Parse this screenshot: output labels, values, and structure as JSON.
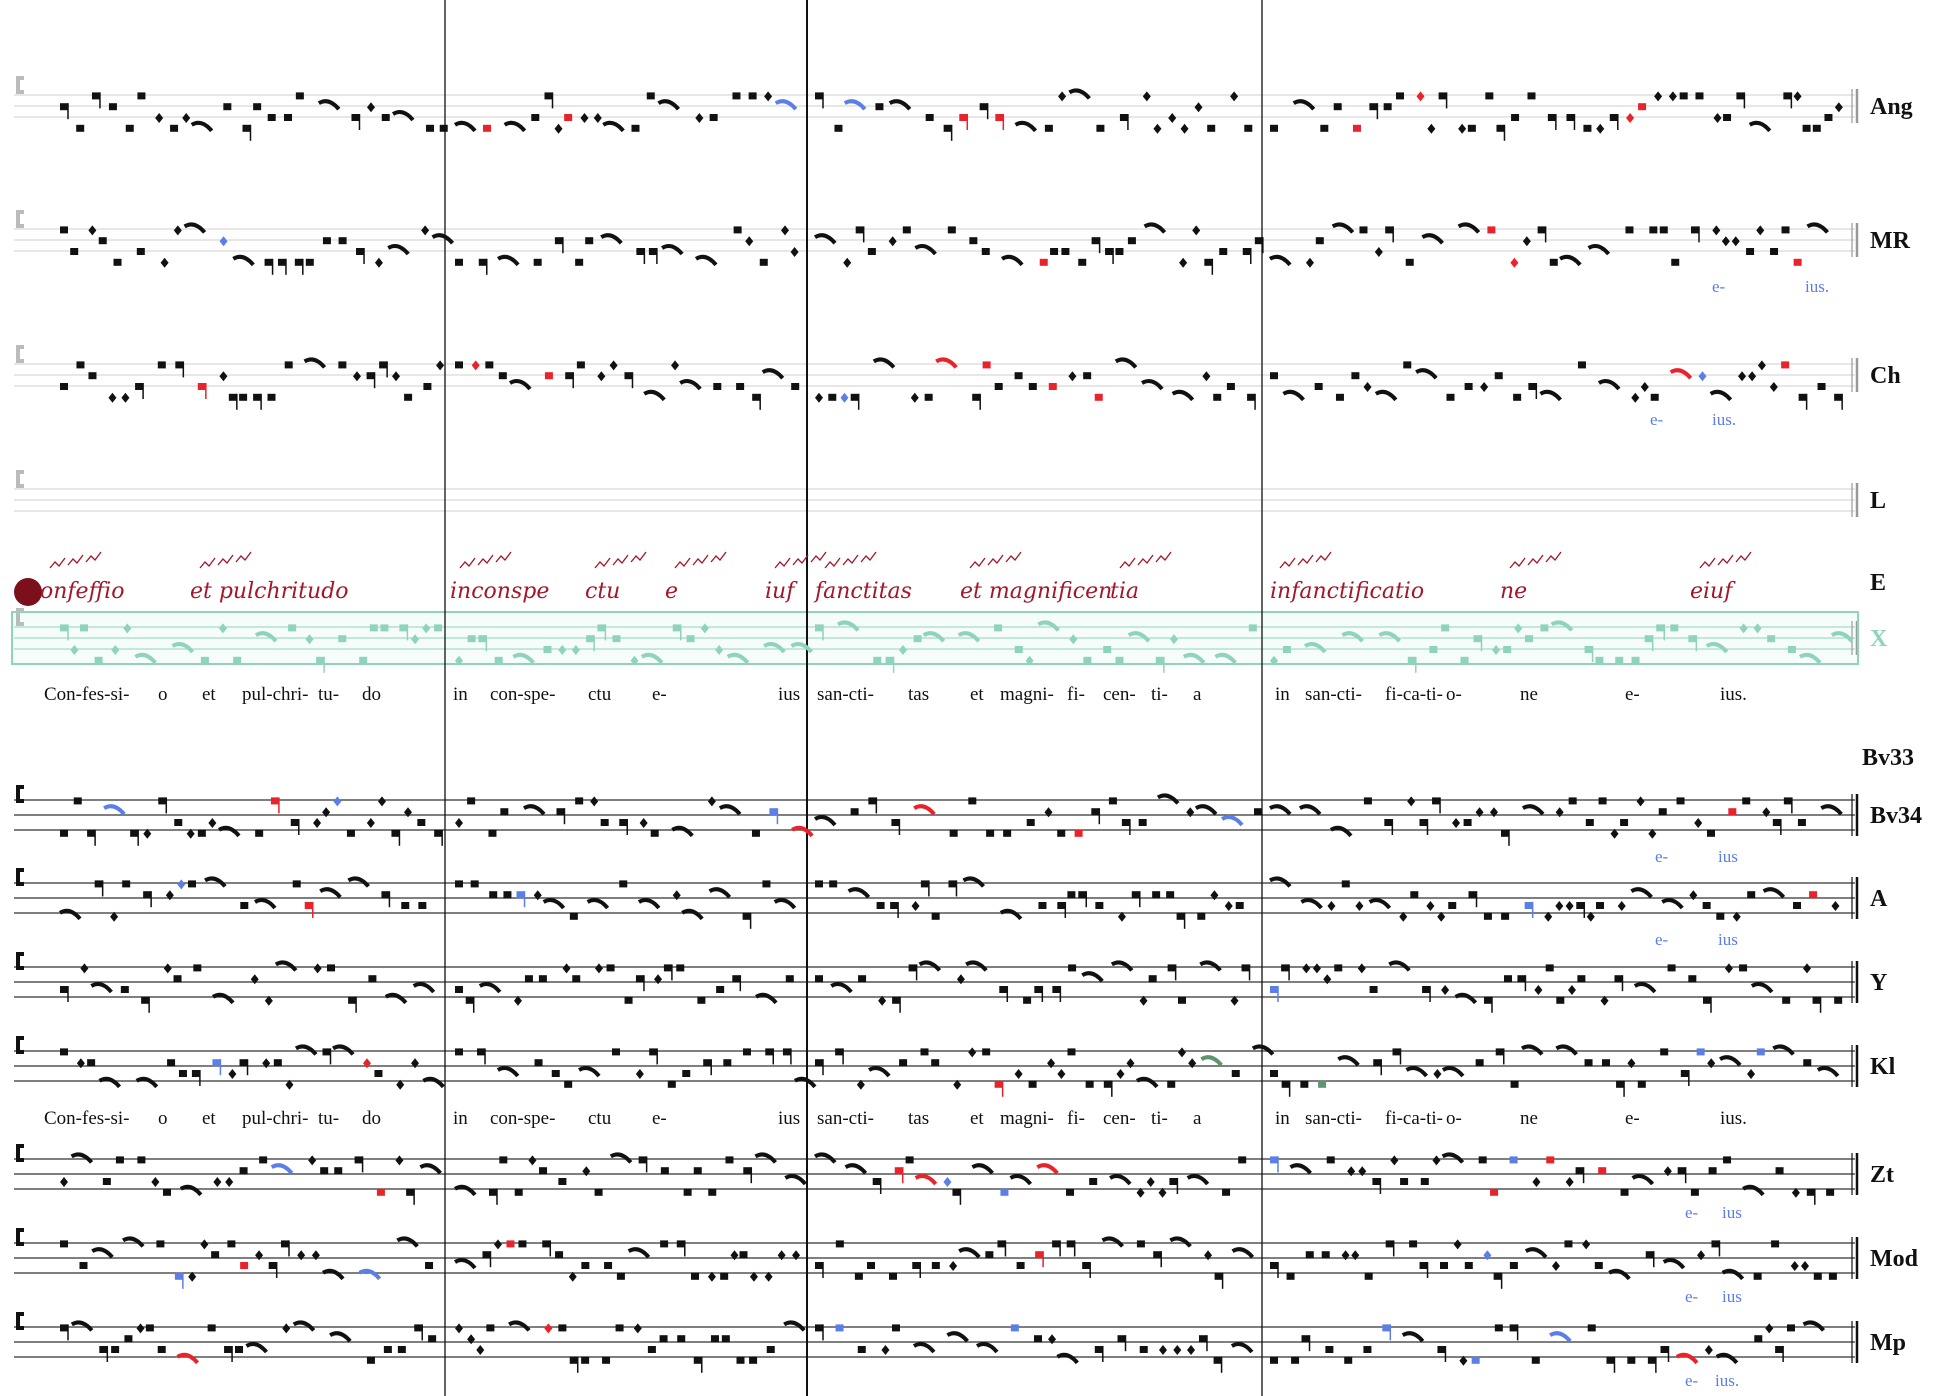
{
  "sigla_top": [
    "Ang",
    "MR",
    "Ch",
    "L",
    "E",
    "X"
  ],
  "sigla_bottom": [
    "Bv33",
    "Bv34",
    "A",
    "Y",
    "Kl",
    "Zt",
    "Mod",
    "Mp"
  ],
  "lyrics": {
    "segments": [
      [
        "Con-fes-si-",
        "o",
        "et",
        "pul-chri-",
        "tu-",
        "do"
      ],
      [
        "in",
        "con-spe-",
        "ctu",
        "e-",
        "ius"
      ],
      [
        "san-cti-",
        "tas",
        "et",
        "magni-",
        "fi-",
        "cen-",
        "ti-",
        "a"
      ],
      [
        "in",
        "san-cti-",
        "fi-ca-ti-",
        "o-",
        "ne",
        "e-",
        "ius."
      ]
    ]
  },
  "variant_lyrics": {
    "MR": [
      "e-",
      "ius."
    ],
    "Ch": [
      "e-",
      "ius."
    ],
    "Bv34": [
      "e-",
      "ius"
    ],
    "A": [
      "e-",
      "ius"
    ],
    "Zt": [
      "e-",
      "ius"
    ],
    "Mod": [
      "e-",
      "ius"
    ],
    "Mp": [
      "e-",
      "ius."
    ]
  },
  "manuscript_E_text": [
    "onfeffio",
    "et pulchritudo",
    "inconspe",
    "ctu",
    "e",
    "iuf",
    "fanctitas",
    "et magnificen",
    "tia",
    "infanctificatio",
    "ne",
    "eiuf"
  ],
  "colors": {
    "ink": "#111111",
    "variant_red": "#e8232b",
    "variant_blue": "#5b7fe6",
    "variant_green": "#5f9470",
    "manuscript_red": "#a3172a",
    "teal_highlight": "#8fd3bd",
    "staff_line_light": "#cfcfcf",
    "staff_line_dark": "#555555"
  }
}
